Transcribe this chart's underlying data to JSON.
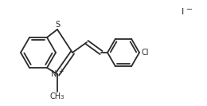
{
  "background_color": "#ffffff",
  "line_color": "#2a2a2a",
  "line_width": 1.3,
  "text_color": "#2a2a2a",
  "figsize": [
    2.6,
    1.33
  ],
  "dpi": 100,
  "xlim": [
    0,
    260
  ],
  "ylim": [
    0,
    133
  ]
}
